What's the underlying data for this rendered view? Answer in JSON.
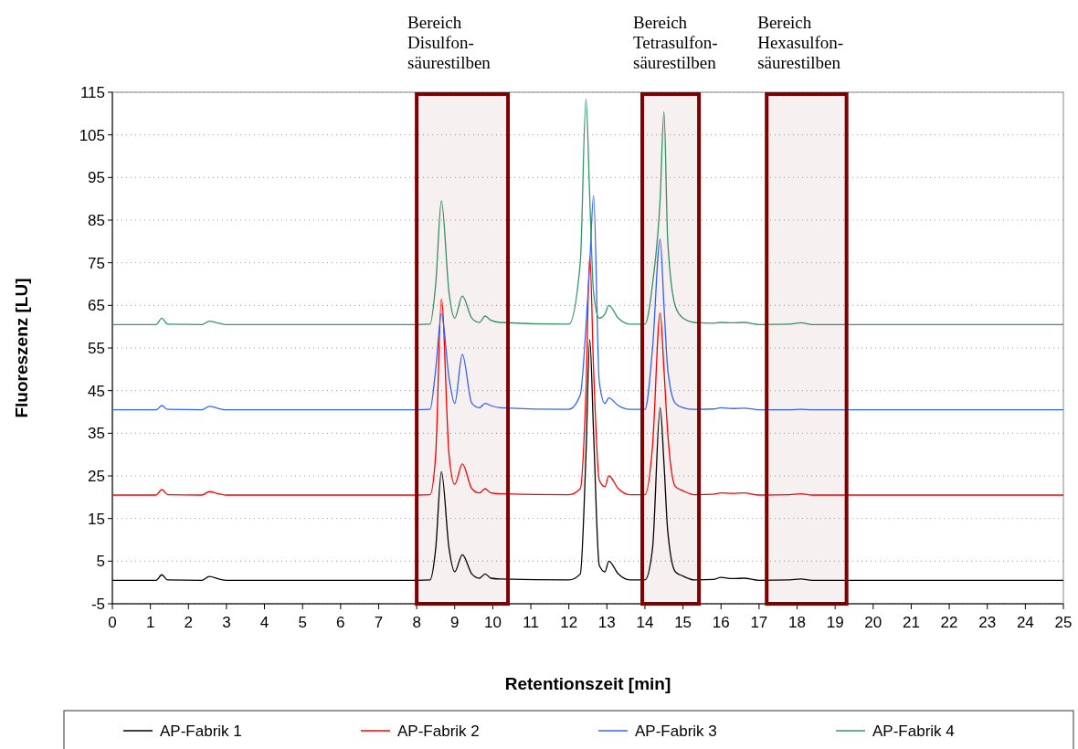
{
  "chart_data": {
    "type": "line",
    "xlabel": "Retentionszeit [min]",
    "ylabel": "Fluoreszenz [LU]",
    "x": [
      0,
      1.15,
      1.3,
      1.45,
      2.35,
      2.55,
      2.8,
      3.0,
      8.0,
      8.35,
      8.5,
      8.65,
      8.85,
      9.0,
      9.2,
      9.45,
      9.65,
      9.8,
      9.95,
      10.2,
      12.0,
      12.3,
      12.45,
      12.55,
      12.65,
      12.8,
      12.95,
      13.05,
      13.3,
      13.6,
      14.0,
      14.2,
      14.4,
      14.5,
      14.6,
      14.8,
      15.0,
      15.3,
      15.8,
      16.0,
      16.3,
      16.6,
      17.0,
      17.8,
      18.1,
      18.4,
      25
    ],
    "series": [
      {
        "name": "AP-Fabrik 1",
        "color": "#000000",
        "values": [
          0.5,
          0.5,
          1.8,
          0.6,
          0.5,
          1.4,
          0.8,
          0.5,
          0.5,
          0.6,
          8,
          26,
          8,
          2.5,
          6.5,
          2,
          1,
          2,
          1,
          0.8,
          0.6,
          2,
          30,
          57,
          35,
          4,
          2.5,
          5,
          2,
          0.6,
          0.6,
          8,
          41,
          28,
          12,
          2.5,
          1.5,
          0.6,
          0.7,
          1.2,
          0.9,
          1,
          0.5,
          0.6,
          0.8,
          0.5,
          0.5
        ]
      },
      {
        "name": "AP-Fabrik 2",
        "color": "#ff0000",
        "values": [
          20.5,
          20.5,
          21.8,
          20.6,
          20.5,
          21.3,
          20.8,
          20.5,
          20.5,
          20.6,
          30,
          66.5,
          30,
          23,
          27.8,
          22,
          21,
          22,
          21,
          20.8,
          20.6,
          22,
          45,
          76.5,
          50,
          24,
          22.5,
          25,
          22,
          20.6,
          20.6,
          32,
          63.2,
          50,
          35,
          22.5,
          21.5,
          20.6,
          20.7,
          21,
          20.9,
          21,
          20.5,
          20.6,
          20.8,
          20.5,
          20.5
        ]
      },
      {
        "name": "AP-Fabrik 3",
        "color": "#3366ff",
        "values": [
          40.5,
          40.5,
          41.5,
          40.6,
          40.5,
          41.3,
          40.8,
          40.5,
          40.5,
          40.6,
          50,
          63,
          48,
          42,
          53.5,
          42,
          41,
          42,
          41.5,
          41,
          40.6,
          44,
          60,
          75,
          90.8,
          47,
          42,
          43.3,
          41.5,
          40.6,
          40.6,
          55,
          80.5,
          65,
          50,
          42,
          41,
          40.6,
          40.7,
          41,
          40.8,
          40.9,
          40.5,
          40.5,
          40.6,
          40.5,
          40.5
        ]
      },
      {
        "name": "AP-Fabrik 4",
        "color": "#339966",
        "values": [
          60.5,
          60.5,
          62,
          60.6,
          60.5,
          61.3,
          60.8,
          60.5,
          60.5,
          60.6,
          70,
          89.5,
          68,
          62,
          67.2,
          62,
          61,
          62.5,
          61.5,
          61,
          60.6,
          75,
          113.4,
          90,
          68,
          62,
          63,
          65,
          62,
          60.6,
          60.6,
          70,
          90,
          110.4,
          80,
          64.8,
          62,
          61,
          60.8,
          61,
          60.9,
          61,
          60.5,
          60.6,
          60.9,
          60.5,
          60.5
        ]
      }
    ],
    "xlim": [
      0,
      25
    ],
    "xticks": [
      0,
      1,
      2,
      3,
      4,
      5,
      6,
      7,
      8,
      9,
      10,
      11,
      12,
      13,
      14,
      15,
      16,
      17,
      18,
      19,
      20,
      21,
      22,
      23,
      24,
      25
    ],
    "ylim": [
      -5,
      115
    ],
    "yticks": [
      -5,
      5,
      15,
      25,
      35,
      45,
      55,
      65,
      75,
      85,
      95,
      105,
      115
    ],
    "grid": "y",
    "legend": "bottom",
    "line_style": "solid",
    "marker": "none",
    "bands": [
      {
        "axis": "x",
        "from": 8.0,
        "to": 10.4,
        "label": "Bereich\nDisulfon-\nsäurestilben",
        "color": "#7f0000"
      },
      {
        "axis": "x",
        "from": 13.93,
        "to": 15.42,
        "label": "Bereich\nTetrasulfon-\nsäurestilben",
        "color": "#7f0000"
      },
      {
        "axis": "x",
        "from": 17.2,
        "to": 19.3,
        "label": "Bereich\nHexasulfon-\nsäurestilben",
        "color": "#7f0000"
      }
    ]
  }
}
